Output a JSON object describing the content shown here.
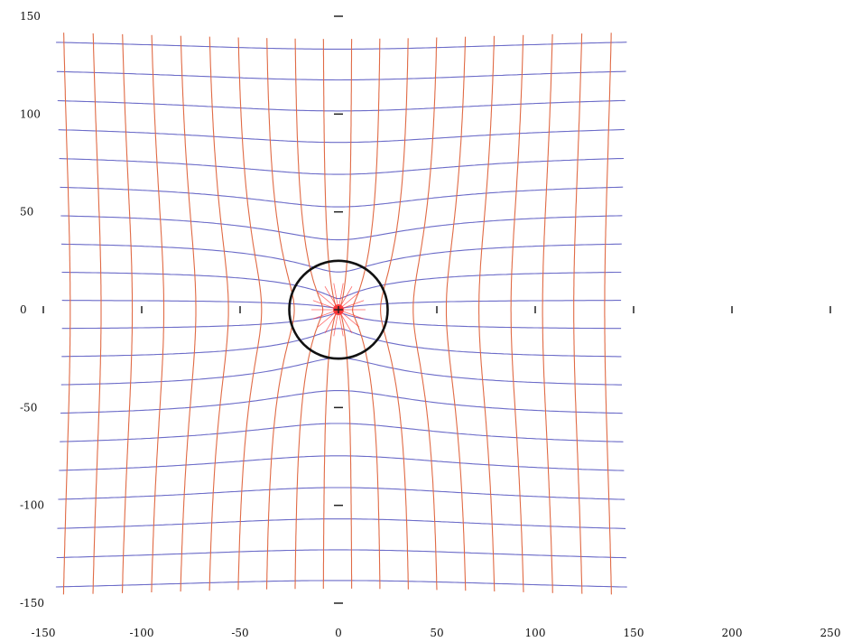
{
  "chart_data": {
    "type": "line",
    "title": "",
    "xlabel": "",
    "ylabel": "",
    "xlim": [
      -150,
      250
    ],
    "ylim": [
      -150,
      150
    ],
    "x_ticks": [
      "-150",
      "-100",
      "-50",
      "0",
      "50",
      "100",
      "150",
      "200",
      "250"
    ],
    "y_ticks": [
      "150",
      "100",
      "50",
      "0",
      "-50",
      "-100",
      "-150"
    ],
    "grid_domain": {
      "x": [
        -150,
        150
      ],
      "y": [
        -150,
        150
      ]
    },
    "grid_spacing": 15,
    "circle": {
      "cx": 0,
      "cy": 0,
      "r": 25
    },
    "center_point": {
      "x": 0,
      "y": 0
    },
    "legend": "none"
  },
  "colors": {
    "horizontal_lines": "#6b6bc8",
    "vertical_lines": "#e06a45",
    "circle": "#111111",
    "center": "#ff2a2a",
    "ticks": "#222222"
  }
}
